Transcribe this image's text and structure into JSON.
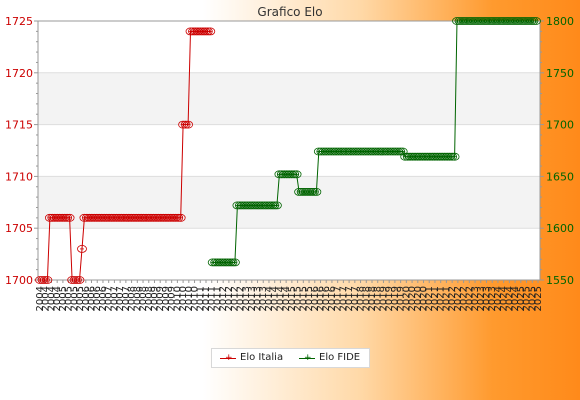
{
  "chart_data": {
    "type": "line",
    "title": "Grafico Elo",
    "grid": true,
    "legend_position": "bottom",
    "left_axis": {
      "min": 1700,
      "max": 1725,
      "ticks": [
        1700,
        1705,
        1710,
        1715,
        1720,
        1725
      ],
      "color": "#cc0000"
    },
    "right_axis": {
      "min": 1550,
      "max": 1800,
      "ticks": [
        1550,
        1600,
        1650,
        1700,
        1750,
        1800
      ],
      "color": "#006400"
    },
    "x_labels": [
      "2004",
      "2004",
      "2004",
      "2004",
      "2005",
      "2005",
      "2005",
      "2005",
      "2006",
      "2006",
      "2006",
      "2006",
      "2007",
      "2007",
      "2007",
      "2007",
      "2008",
      "2008",
      "2008",
      "2008",
      "2009",
      "2009",
      "2009",
      "2009",
      "2010",
      "2010",
      "2010",
      "2010",
      "2011",
      "2011",
      "2011",
      "2011",
      "2012",
      "2012",
      "2012",
      "2012",
      "2013",
      "2013",
      "2013",
      "2013",
      "2014",
      "2014",
      "2014",
      "2014",
      "2015",
      "2015",
      "2015",
      "2015",
      "2016",
      "2016",
      "2016",
      "2016",
      "2017",
      "2017",
      "2017",
      "2017",
      "2018",
      "2018",
      "2018",
      "2018",
      "2019",
      "2019",
      "2019",
      "2019",
      "2020",
      "2020",
      "2020",
      "2020",
      "2021",
      "2021",
      "2021",
      "2021",
      "2022",
      "2022",
      "2022",
      "2022",
      "2023",
      "2023",
      "2023",
      "2023",
      "2024",
      "2024",
      "2024",
      "2024",
      "2025",
      "2025",
      "2025",
      "2025"
    ],
    "series": [
      {
        "name": "Elo Italia",
        "axis": "left",
        "color": "#cc0000",
        "segments": [
          {
            "x_start": 0,
            "x_end": 3,
            "value": 1700
          },
          {
            "x_start": 4,
            "x_end": 12,
            "value": 1706
          },
          {
            "x_start": 13,
            "x_end": 16,
            "value": 1700
          },
          {
            "x_start": 17,
            "x_end": 17,
            "value": 1703
          },
          {
            "x_start": 18,
            "x_end": 57,
            "value": 1706
          },
          {
            "x_start": 58,
            "x_end": 60,
            "value": 1715
          },
          {
            "x_start": 61,
            "x_end": 69,
            "value": 1724
          }
        ]
      },
      {
        "name": "Elo FIDE",
        "axis": "right",
        "color": "#006400",
        "segments": [
          {
            "x_start": 70,
            "x_end": 79,
            "value": 1567
          },
          {
            "x_start": 80,
            "x_end": 96,
            "value": 1622
          },
          {
            "x_start": 97,
            "x_end": 104,
            "value": 1652
          },
          {
            "x_start": 105,
            "x_end": 112,
            "value": 1635
          },
          {
            "x_start": 113,
            "x_end": 147,
            "value": 1674
          },
          {
            "x_start": 148,
            "x_end": 168,
            "value": 1669
          },
          {
            "x_start": 169,
            "x_end": 201,
            "value": 1800
          }
        ]
      }
    ]
  }
}
